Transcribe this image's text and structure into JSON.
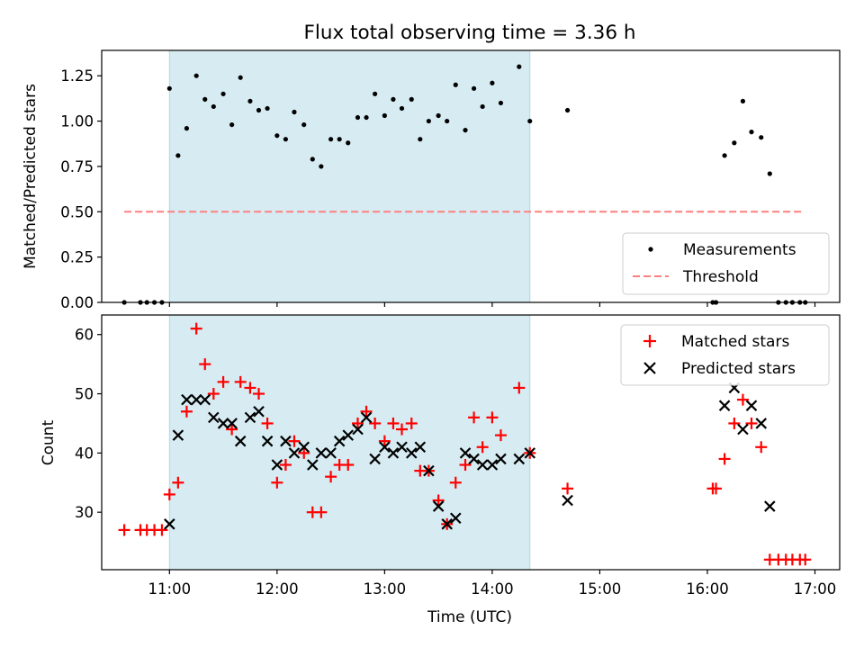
{
  "title": "Flux total observing time = 3.36 h",
  "chart_data": [
    {
      "type": "scatter",
      "ylabel": "Matched/Predicted stars",
      "ylim": [
        0,
        1.39
      ],
      "yticks": [
        0.0,
        0.25,
        0.5,
        0.75,
        1.0,
        1.25
      ],
      "ytick_labels": [
        "0.00",
        "0.25",
        "0.50",
        "0.75",
        "1.00",
        "1.25"
      ],
      "xlim_hours": [
        10.37,
        17.23
      ],
      "highlight_span_hours": [
        11.0,
        14.35
      ],
      "highlight_color": "#add8e6",
      "legend_position": "lower-right",
      "legend": [
        {
          "label": "Measurements",
          "marker": "dot",
          "color": "#000000"
        },
        {
          "label": "Threshold",
          "marker": "dashed-line",
          "color": "#ff7f7f"
        }
      ],
      "threshold": {
        "value": 0.5,
        "x_range_hours": [
          10.58,
          16.9
        ],
        "color": "#ff7f7f"
      },
      "series": [
        {
          "name": "Measurements",
          "color": "#000000",
          "points": [
            [
              10.58,
              0
            ],
            [
              10.73,
              0
            ],
            [
              10.79,
              0
            ],
            [
              10.86,
              0
            ],
            [
              10.93,
              0
            ],
            [
              11.0,
              1.18
            ],
            [
              11.08,
              0.81
            ],
            [
              11.16,
              0.96
            ],
            [
              11.25,
              1.25
            ],
            [
              11.33,
              1.12
            ],
            [
              11.41,
              1.08
            ],
            [
              11.5,
              1.15
            ],
            [
              11.58,
              0.98
            ],
            [
              11.66,
              1.24
            ],
            [
              11.75,
              1.11
            ],
            [
              11.83,
              1.06
            ],
            [
              11.91,
              1.07
            ],
            [
              12.0,
              0.92
            ],
            [
              12.08,
              0.9
            ],
            [
              12.16,
              1.05
            ],
            [
              12.25,
              0.98
            ],
            [
              12.33,
              0.79
            ],
            [
              12.41,
              0.75
            ],
            [
              12.5,
              0.9
            ],
            [
              12.58,
              0.9
            ],
            [
              12.66,
              0.88
            ],
            [
              12.75,
              1.02
            ],
            [
              12.83,
              1.02
            ],
            [
              12.91,
              1.15
            ],
            [
              13.0,
              1.03
            ],
            [
              13.08,
              1.12
            ],
            [
              13.16,
              1.07
            ],
            [
              13.25,
              1.12
            ],
            [
              13.33,
              0.9
            ],
            [
              13.41,
              1.0
            ],
            [
              13.5,
              1.03
            ],
            [
              13.58,
              1.0
            ],
            [
              13.66,
              1.2
            ],
            [
              13.75,
              0.95
            ],
            [
              13.83,
              1.18
            ],
            [
              13.91,
              1.08
            ],
            [
              14.0,
              1.21
            ],
            [
              14.08,
              1.1
            ],
            [
              14.25,
              1.3
            ],
            [
              14.35,
              1.0
            ],
            [
              14.7,
              1.06
            ],
            [
              16.05,
              0
            ],
            [
              16.08,
              0
            ],
            [
              16.16,
              0.81
            ],
            [
              16.25,
              0.88
            ],
            [
              16.33,
              1.11
            ],
            [
              16.41,
              0.94
            ],
            [
              16.5,
              0.91
            ],
            [
              16.58,
              0.71
            ],
            [
              16.66,
              0
            ],
            [
              16.73,
              0
            ],
            [
              16.79,
              0
            ],
            [
              16.86,
              0
            ],
            [
              16.91,
              0
            ]
          ]
        }
      ]
    },
    {
      "type": "scatter",
      "ylabel": "Count",
      "xlabel": "Time (UTC)",
      "ylim": [
        20.3,
        63.3
      ],
      "yticks": [
        30,
        40,
        50,
        60
      ],
      "ytick_labels": [
        "30",
        "40",
        "50",
        "60"
      ],
      "xlim_hours": [
        10.37,
        17.23
      ],
      "xticks_hours": [
        11,
        12,
        13,
        14,
        15,
        16,
        17
      ],
      "xtick_labels": [
        "11:00",
        "12:00",
        "13:00",
        "14:00",
        "15:00",
        "16:00",
        "17:00"
      ],
      "highlight_span_hours": [
        11.0,
        14.35
      ],
      "highlight_color": "#add8e6",
      "legend_position": "upper-right",
      "legend": [
        {
          "label": "Matched stars",
          "marker": "plus",
          "color": "#ff0000"
        },
        {
          "label": "Predicted stars",
          "marker": "x",
          "color": "#000000"
        }
      ],
      "series": [
        {
          "name": "Matched stars",
          "marker": "plus",
          "color": "#ff0000",
          "points": [
            [
              10.58,
              27
            ],
            [
              10.73,
              27
            ],
            [
              10.79,
              27
            ],
            [
              10.86,
              27
            ],
            [
              10.93,
              27
            ],
            [
              11.0,
              33
            ],
            [
              11.08,
              35
            ],
            [
              11.16,
              47
            ],
            [
              11.25,
              61
            ],
            [
              11.33,
              55
            ],
            [
              11.41,
              50
            ],
            [
              11.5,
              52
            ],
            [
              11.58,
              44
            ],
            [
              11.66,
              52
            ],
            [
              11.75,
              51
            ],
            [
              11.83,
              50
            ],
            [
              11.91,
              45
            ],
            [
              12.0,
              35
            ],
            [
              12.08,
              38
            ],
            [
              12.16,
              42
            ],
            [
              12.25,
              40
            ],
            [
              12.33,
              30
            ],
            [
              12.41,
              30
            ],
            [
              12.5,
              36
            ],
            [
              12.58,
              38
            ],
            [
              12.66,
              38
            ],
            [
              12.75,
              45
            ],
            [
              12.83,
              47
            ],
            [
              12.91,
              45
            ],
            [
              13.0,
              42
            ],
            [
              13.08,
              45
            ],
            [
              13.16,
              44
            ],
            [
              13.25,
              45
            ],
            [
              13.33,
              37
            ],
            [
              13.41,
              37
            ],
            [
              13.5,
              32
            ],
            [
              13.58,
              28
            ],
            [
              13.66,
              35
            ],
            [
              13.75,
              38
            ],
            [
              13.83,
              46
            ],
            [
              13.91,
              41
            ],
            [
              14.0,
              46
            ],
            [
              14.08,
              43
            ],
            [
              14.25,
              51
            ],
            [
              14.35,
              40
            ],
            [
              14.7,
              34
            ],
            [
              16.05,
              34
            ],
            [
              16.08,
              34
            ],
            [
              16.16,
              39
            ],
            [
              16.25,
              45
            ],
            [
              16.33,
              49
            ],
            [
              16.41,
              45
            ],
            [
              16.5,
              41
            ],
            [
              16.58,
              22
            ],
            [
              16.66,
              22
            ],
            [
              16.73,
              22
            ],
            [
              16.79,
              22
            ],
            [
              16.86,
              22
            ],
            [
              16.91,
              22
            ]
          ]
        },
        {
          "name": "Predicted stars",
          "marker": "x",
          "color": "#000000",
          "points": [
            [
              11.0,
              28
            ],
            [
              11.08,
              43
            ],
            [
              11.16,
              49
            ],
            [
              11.25,
              49
            ],
            [
              11.33,
              49
            ],
            [
              11.41,
              46
            ],
            [
              11.5,
              45
            ],
            [
              11.58,
              45
            ],
            [
              11.66,
              42
            ],
            [
              11.75,
              46
            ],
            [
              11.83,
              47
            ],
            [
              11.91,
              42
            ],
            [
              12.0,
              38
            ],
            [
              12.08,
              42
            ],
            [
              12.16,
              40
            ],
            [
              12.25,
              41
            ],
            [
              12.33,
              38
            ],
            [
              12.41,
              40
            ],
            [
              12.5,
              40
            ],
            [
              12.58,
              42
            ],
            [
              12.66,
              43
            ],
            [
              12.75,
              44
            ],
            [
              12.83,
              46
            ],
            [
              12.91,
              39
            ],
            [
              13.0,
              41
            ],
            [
              13.08,
              40
            ],
            [
              13.16,
              41
            ],
            [
              13.25,
              40
            ],
            [
              13.33,
              41
            ],
            [
              13.41,
              37
            ],
            [
              13.5,
              31
            ],
            [
              13.58,
              28
            ],
            [
              13.66,
              29
            ],
            [
              13.75,
              40
            ],
            [
              13.83,
              39
            ],
            [
              13.91,
              38
            ],
            [
              14.0,
              38
            ],
            [
              14.08,
              39
            ],
            [
              14.25,
              39
            ],
            [
              14.35,
              40
            ],
            [
              14.7,
              32
            ],
            [
              16.16,
              48
            ],
            [
              16.25,
              51
            ],
            [
              16.33,
              44
            ],
            [
              16.41,
              48
            ],
            [
              16.5,
              45
            ],
            [
              16.58,
              31
            ]
          ]
        }
      ]
    }
  ]
}
